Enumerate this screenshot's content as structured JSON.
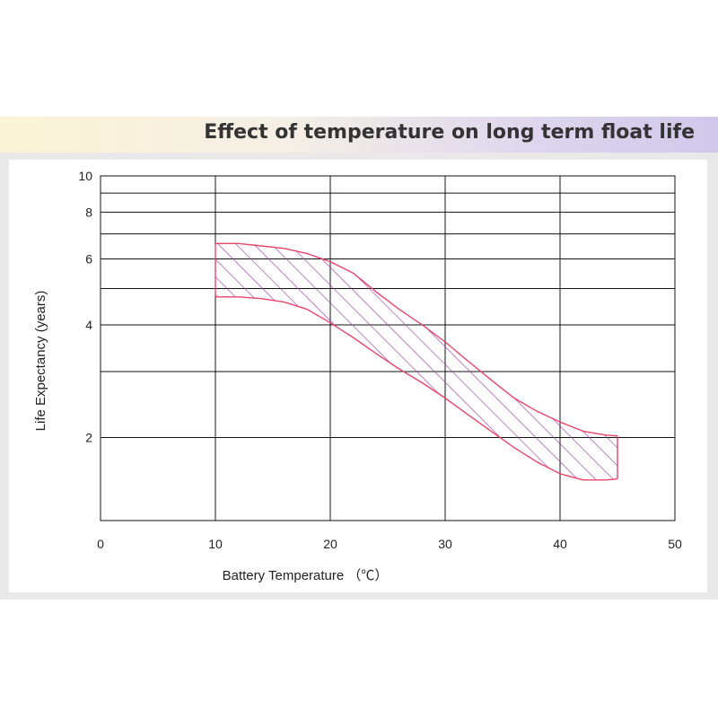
{
  "header": {
    "title": "Effect of temperature on long term float life"
  },
  "colors": {
    "band": "#e8456b",
    "hatch": "#9b3fa8",
    "grid": "#111111"
  },
  "chart_data": {
    "type": "area",
    "title": "Effect of temperature on long term float life",
    "xlabel": "Battery Temperature （℃）",
    "ylabel": "Life Expectancy (years)",
    "xlim": [
      0,
      50
    ],
    "ylim": [
      1.2,
      10
    ],
    "y_scale": "log",
    "x_ticks": [
      "0",
      "10",
      "20",
      "30",
      "40",
      "50"
    ],
    "y_ticks": [
      {
        "value": 10,
        "label": "10"
      },
      {
        "value": 8,
        "label": "8"
      },
      {
        "value": 6,
        "label": "6"
      },
      {
        "value": 4,
        "label": "4"
      },
      {
        "value": 2,
        "label": "2"
      }
    ],
    "y_gridlines": [
      2,
      3,
      4,
      5,
      6,
      7,
      8,
      9,
      10
    ],
    "x_gridlines": [
      10,
      20,
      30,
      40,
      50
    ],
    "series": [
      {
        "name": "upper",
        "x": [
          10,
          12,
          14,
          16,
          18,
          20,
          22,
          24,
          26,
          28,
          30,
          32,
          34,
          36,
          38,
          40,
          42,
          44,
          45
        ],
        "values": [
          6.6,
          6.6,
          6.5,
          6.4,
          6.2,
          5.9,
          5.5,
          4.9,
          4.4,
          4.0,
          3.6,
          3.2,
          2.85,
          2.55,
          2.35,
          2.2,
          2.08,
          2.03,
          2.02
        ]
      },
      {
        "name": "lower",
        "x": [
          10,
          12,
          14,
          16,
          18,
          20,
          22,
          24,
          26,
          28,
          30,
          32,
          34,
          36,
          38,
          40,
          42,
          44,
          45
        ],
        "values": [
          4.75,
          4.75,
          4.7,
          4.6,
          4.4,
          4.05,
          3.7,
          3.35,
          3.05,
          2.8,
          2.55,
          2.3,
          2.08,
          1.88,
          1.72,
          1.6,
          1.54,
          1.54,
          1.55
        ]
      }
    ],
    "grid": true,
    "legend": "none"
  }
}
